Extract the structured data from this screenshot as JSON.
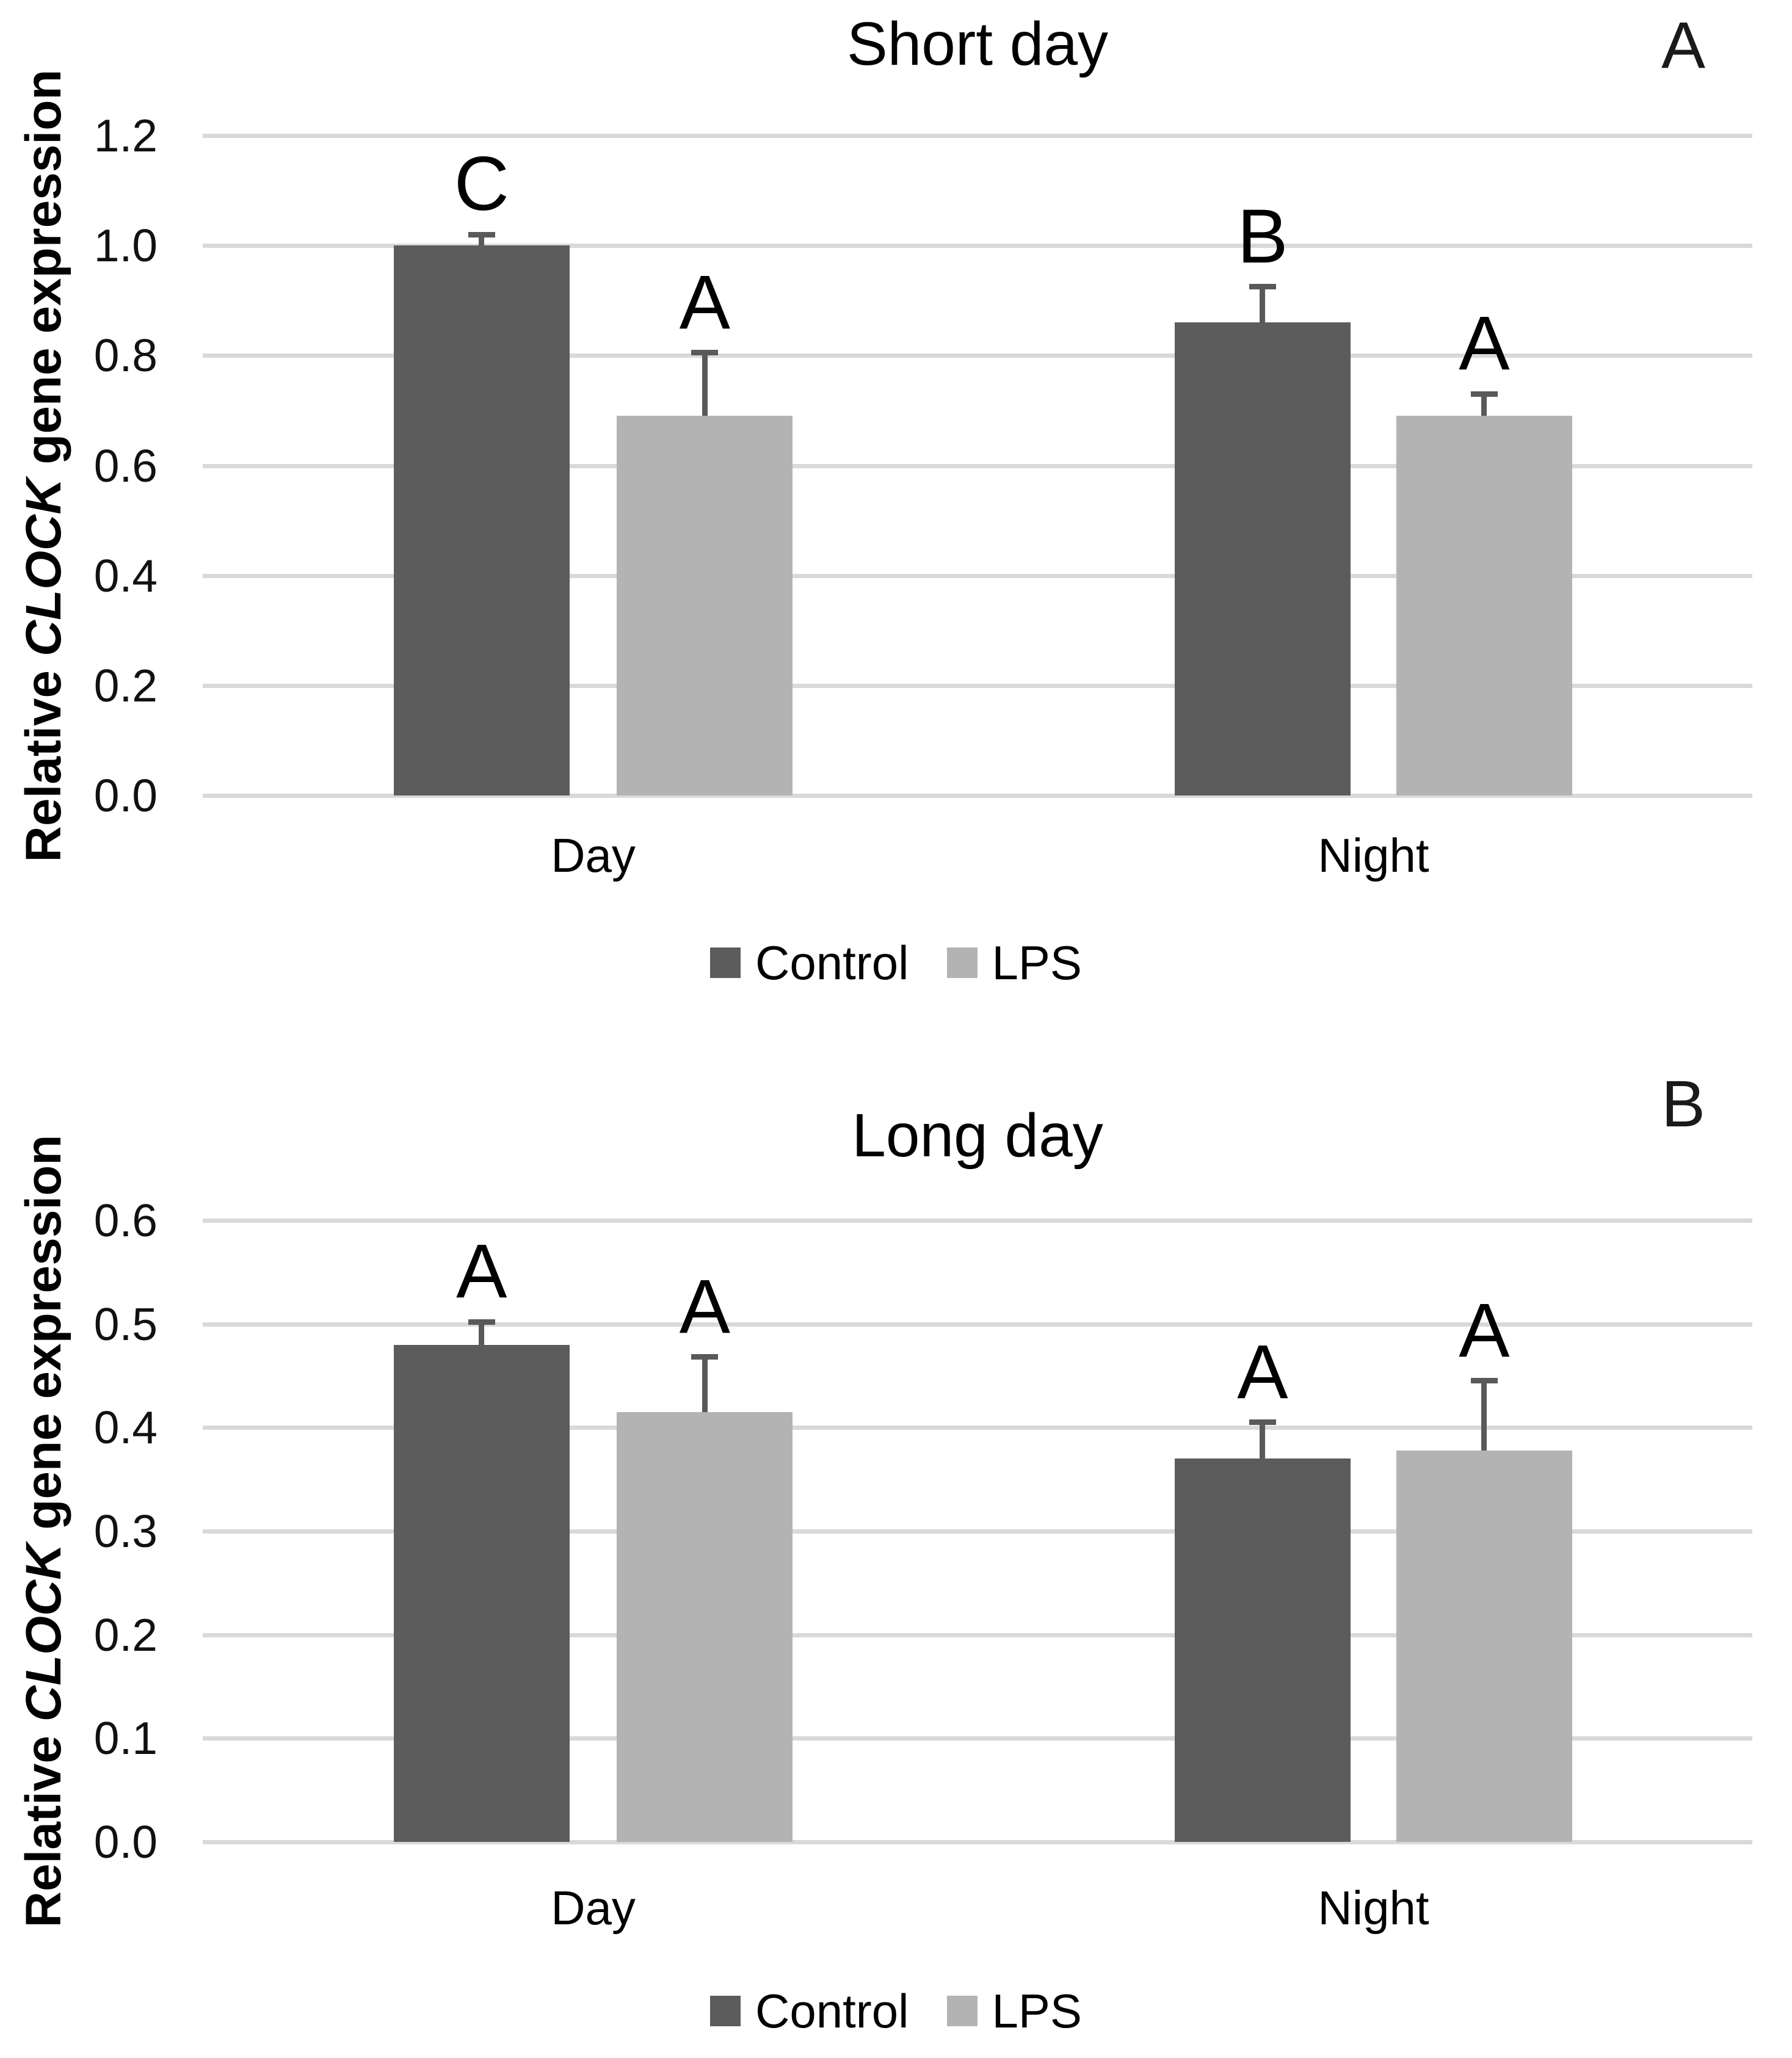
{
  "figure": {
    "y_axis_title": {
      "prefix": "Relative ",
      "italic": "CLOCK",
      "suffix": " gene expression"
    }
  },
  "colors": {
    "control_bar": "#5c5c5c",
    "lps_bar": "#b3b3b3",
    "gridline": "#d9d9d9",
    "error_bar": "#595959",
    "text": "#000000"
  },
  "legend": {
    "items": [
      {
        "label": "Control",
        "color": "#5c5c5c"
      },
      {
        "label": "LPS",
        "color": "#b3b3b3"
      }
    ]
  },
  "chart_data": [
    {
      "type": "bar",
      "panel_label": "A",
      "title": "Short day",
      "categories": [
        "Day",
        "Night"
      ],
      "series": [
        {
          "name": "Control",
          "color": "#5c5c5c",
          "values": [
            1.0,
            0.86
          ],
          "errors_plus": [
            0.02,
            0.065
          ],
          "letters": [
            "C",
            "B"
          ]
        },
        {
          "name": "LPS",
          "color": "#b3b3b3",
          "values": [
            0.69,
            0.69
          ],
          "errors_plus": [
            0.115,
            0.04
          ],
          "letters": [
            "A",
            "A"
          ]
        }
      ],
      "ylabel": "Relative CLOCK gene expression",
      "xlabel": "",
      "ylim": [
        0,
        1.2
      ],
      "grid": true,
      "legend_position": "bottom",
      "yticks": [
        {
          "label": "1.2",
          "value": 1.2
        },
        {
          "label": "1.0",
          "value": 1.0
        },
        {
          "label": "0.8",
          "value": 0.8
        },
        {
          "label": "0.6",
          "value": 0.6
        },
        {
          "label": "0.4",
          "value": 0.4
        },
        {
          "label": "0.2",
          "value": 0.2
        },
        {
          "label": "0.0",
          "value": 0.0
        }
      ]
    },
    {
      "type": "bar",
      "panel_label": "B",
      "title": "Long day",
      "categories": [
        "Day",
        "Night"
      ],
      "series": [
        {
          "name": "Control",
          "color": "#5c5c5c",
          "values": [
            0.48,
            0.37
          ],
          "errors_plus": [
            0.022,
            0.035
          ],
          "letters": [
            "A",
            "A"
          ]
        },
        {
          "name": "LPS",
          "color": "#b3b3b3",
          "values": [
            0.415,
            0.378
          ],
          "errors_plus": [
            0.053,
            0.067
          ],
          "letters": [
            "A",
            "A"
          ]
        }
      ],
      "ylabel": "Relative CLOCK gene expression",
      "xlabel": "",
      "ylim": [
        0,
        0.6
      ],
      "grid": true,
      "legend_position": "bottom",
      "yticks": [
        {
          "label": "0.6",
          "value": 0.6
        },
        {
          "label": "0.5",
          "value": 0.5
        },
        {
          "label": "0.4",
          "value": 0.4
        },
        {
          "label": "0.3",
          "value": 0.3
        },
        {
          "label": "0.2",
          "value": 0.2
        },
        {
          "label": "0.1",
          "value": 0.1
        },
        {
          "label": "0.0",
          "value": 0.0
        }
      ]
    }
  ]
}
